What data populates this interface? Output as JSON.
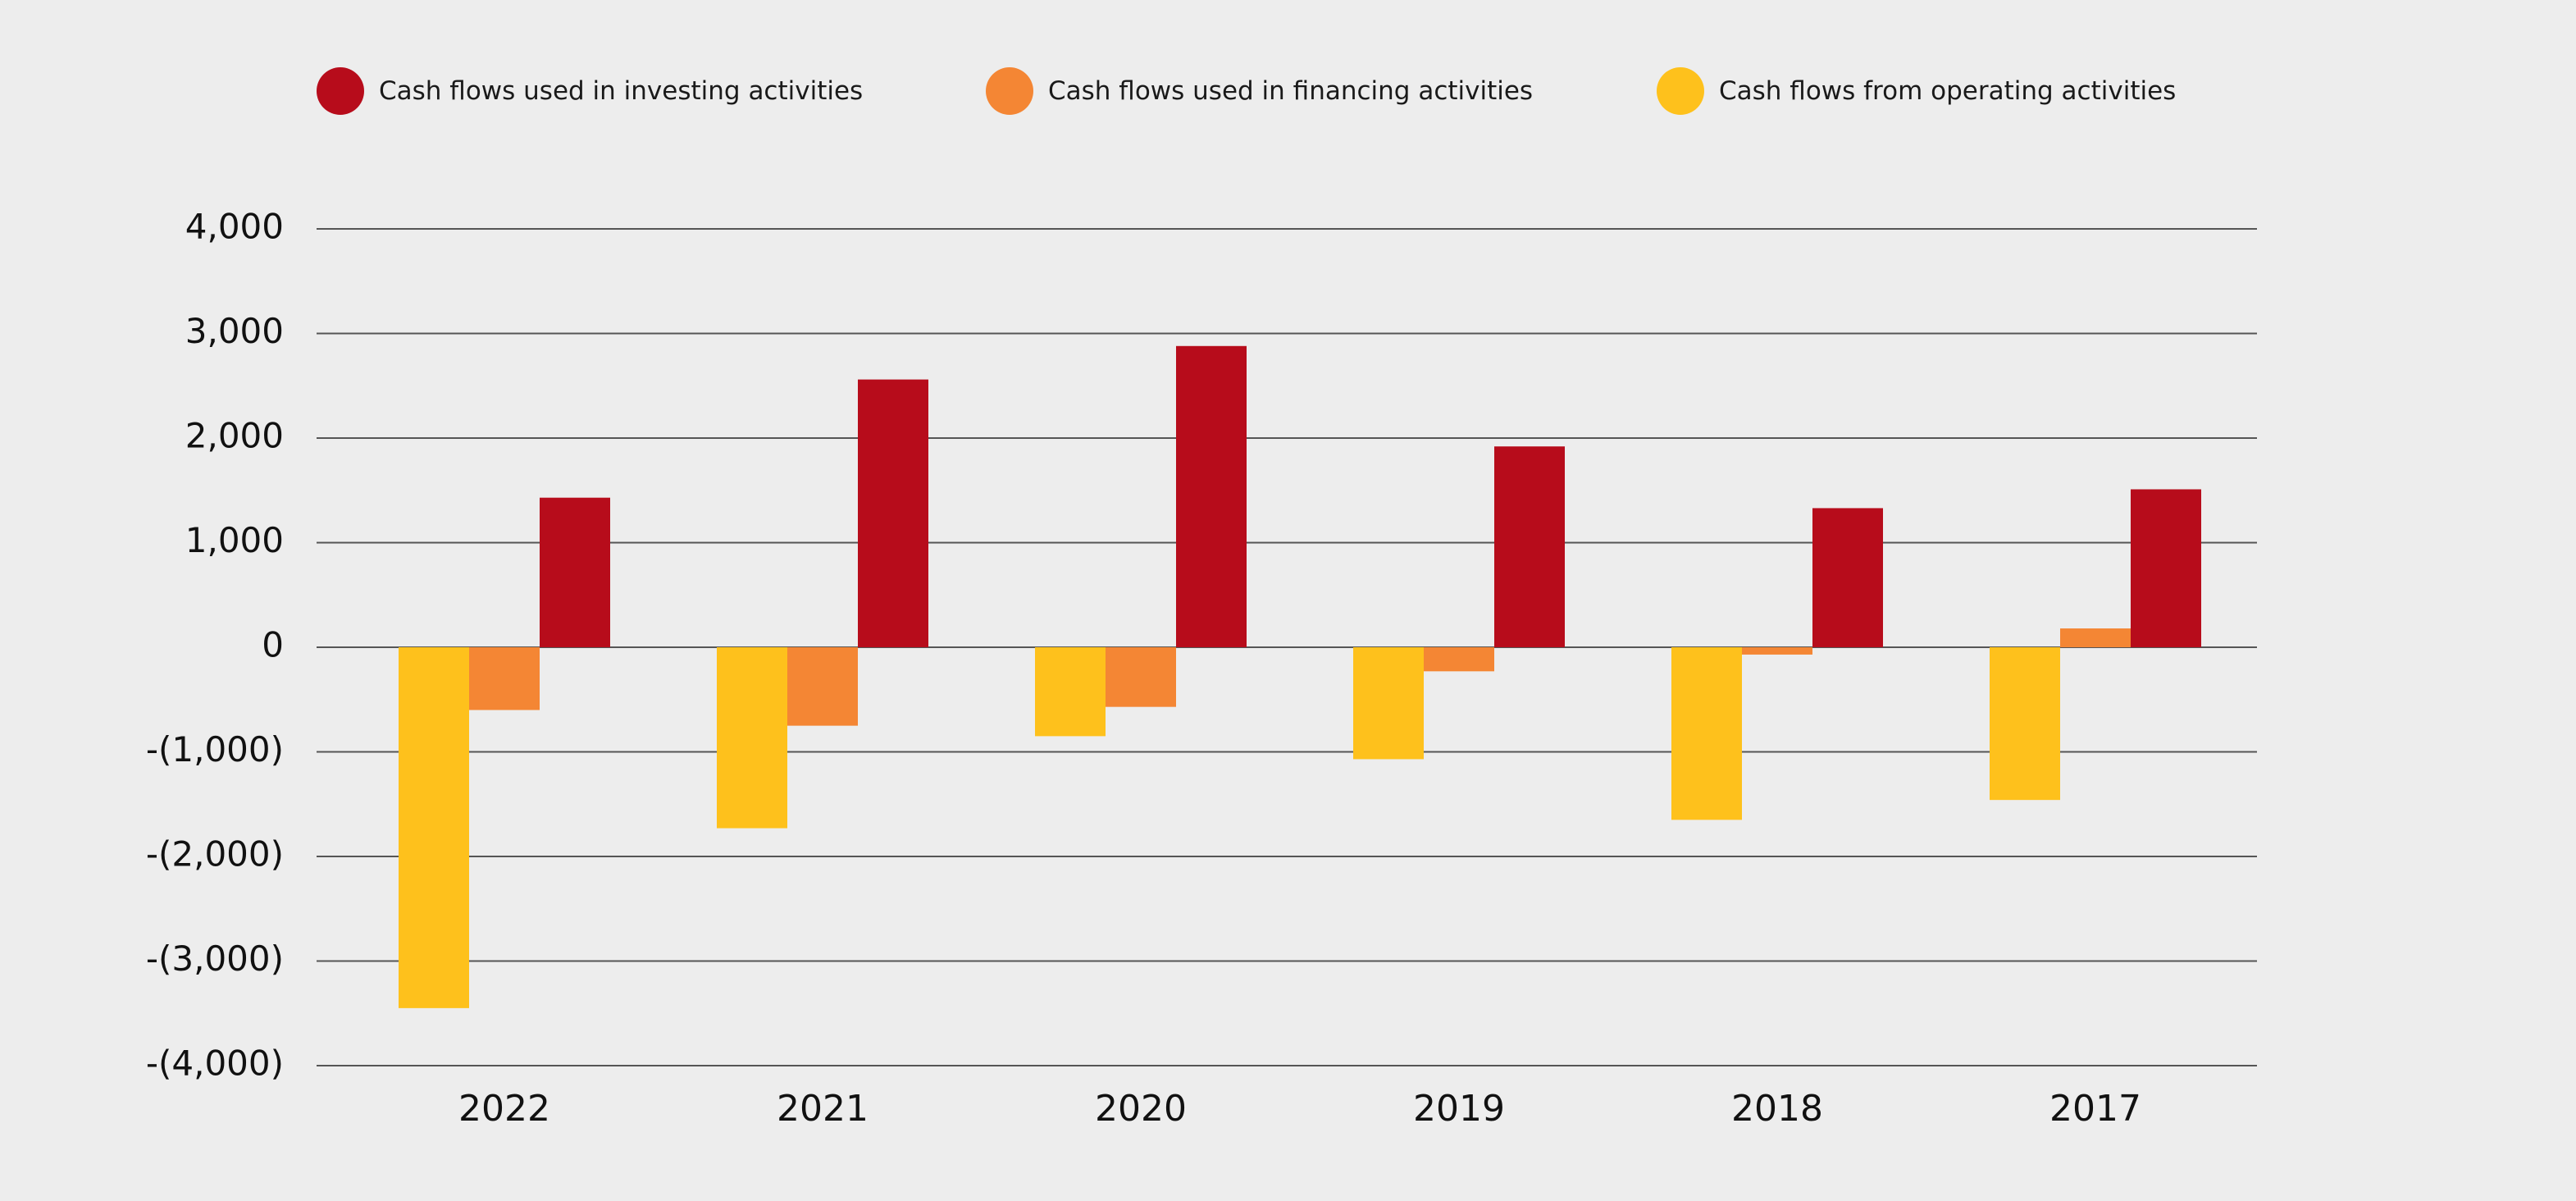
{
  "chart_data": {
    "type": "bar",
    "categories": [
      "2022",
      "2021",
      "2020",
      "2019",
      "2018",
      "2017"
    ],
    "series": [
      {
        "name": "Cash flows from operating activities",
        "color": "#fec11c",
        "values": [
          -3450,
          -1730,
          -850,
          -1070,
          -1650,
          -1460
        ]
      },
      {
        "name": "Cash flows used in financing activities",
        "color": "#f48634",
        "values": [
          -600,
          -750,
          -570,
          -230,
          -70,
          180
        ]
      },
      {
        "name": "Cash flows used in investing activities",
        "color": "#b70c1b",
        "values": [
          1430,
          2560,
          2880,
          1920,
          1330,
          1510
        ]
      }
    ],
    "legend_order": [
      2,
      1,
      0
    ],
    "yticks": [
      {
        "value": 4000,
        "label": "4,000"
      },
      {
        "value": 3000,
        "label": "3,000"
      },
      {
        "value": 2000,
        "label": "2,000"
      },
      {
        "value": 1000,
        "label": "1,000"
      },
      {
        "value": 0,
        "label": "0"
      },
      {
        "value": -1000,
        "label": "-(1,000)"
      },
      {
        "value": -2000,
        "label": "-(2,000)"
      },
      {
        "value": -3000,
        "label": "-(3,000)"
      },
      {
        "value": -4000,
        "label": "-(4,000)"
      }
    ],
    "ylim": [
      -4000,
      4000
    ],
    "grid": true,
    "legend_position": "top",
    "title": "",
    "xlabel": "",
    "ylabel": ""
  }
}
